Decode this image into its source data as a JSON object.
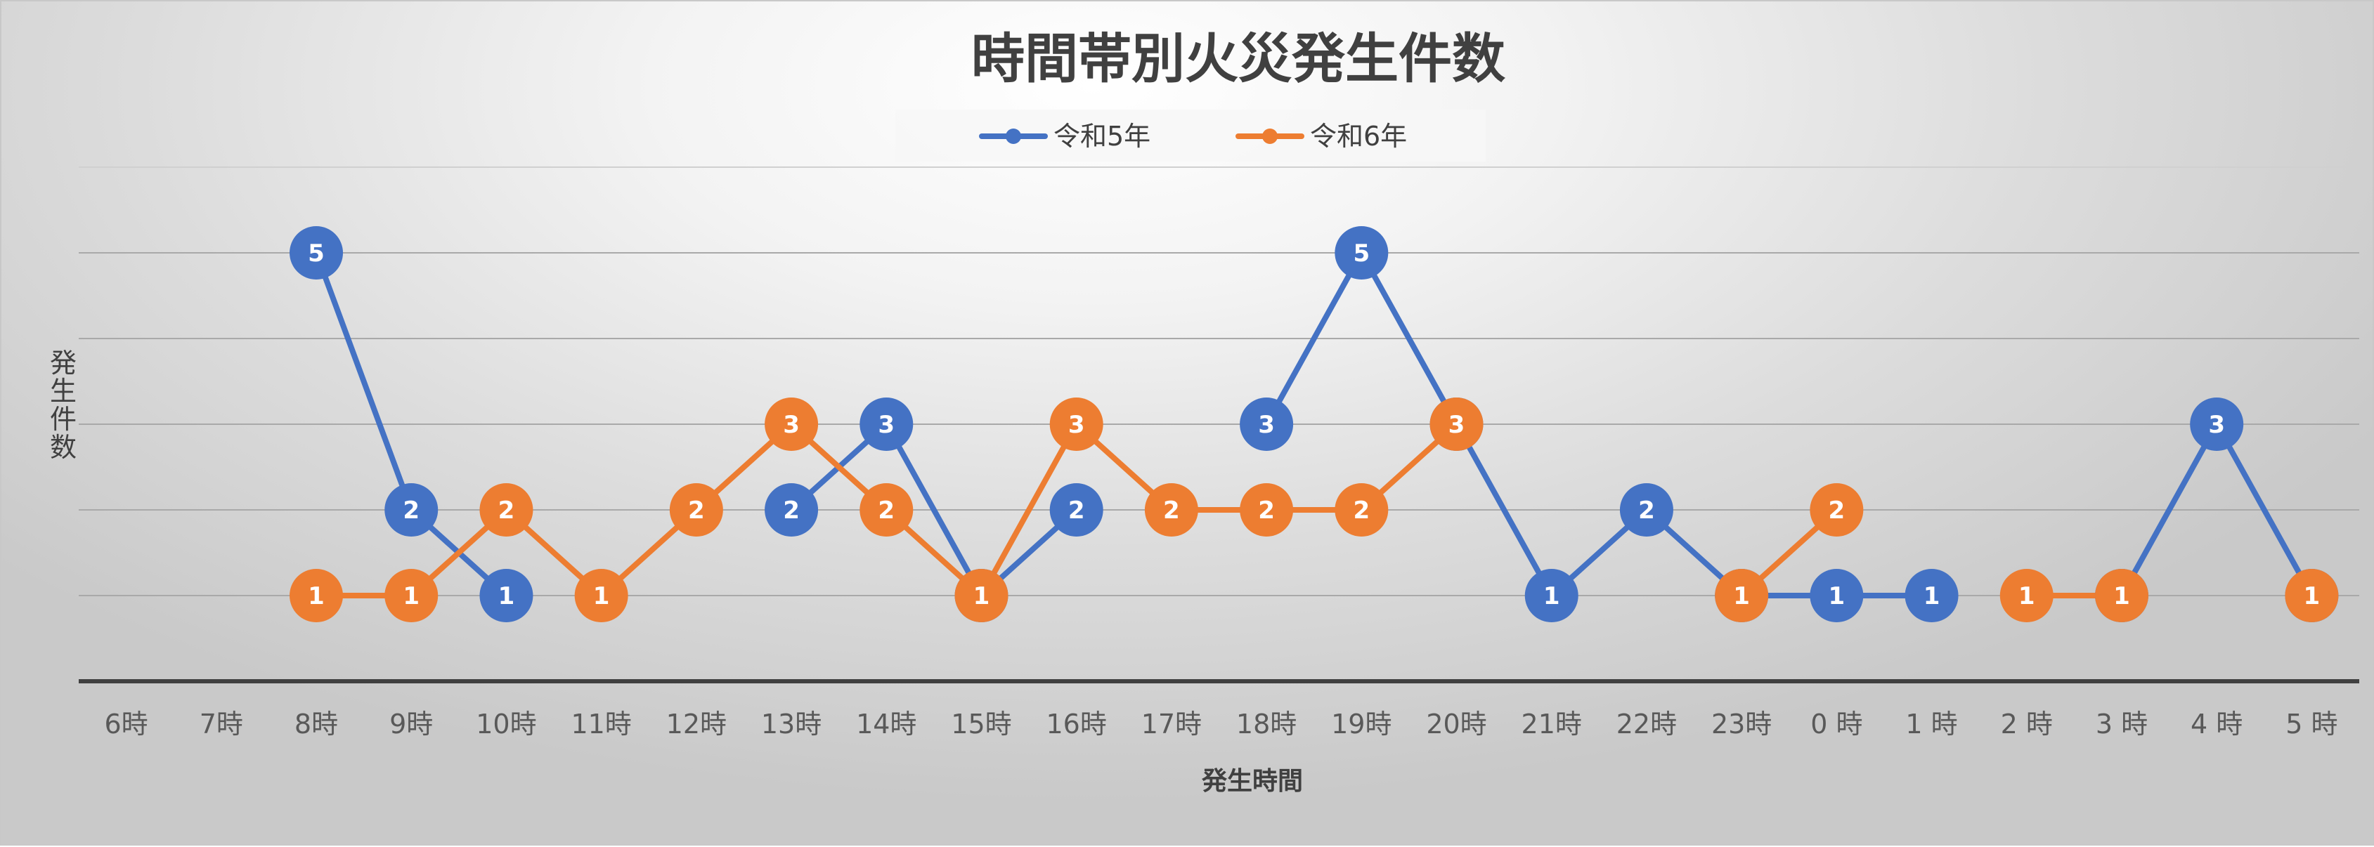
{
  "chart_data": {
    "type": "line",
    "title": "時間帯別火災発生件数",
    "xlabel": "発生時間",
    "ylabel": "発生件数",
    "categories": [
      "6時",
      "7時",
      "8時",
      "9時",
      "10時",
      "11時",
      "12時",
      "13時",
      "14時",
      "15時",
      "16時",
      "17時",
      "18時",
      "19時",
      "20時",
      "21時",
      "22時",
      "23時",
      "0 時",
      "1 時",
      "2 時",
      "3 時",
      "4 時",
      "5 時"
    ],
    "ylim": [
      0,
      6
    ],
    "grid": true,
    "legend": "top",
    "series": [
      {
        "name": "令和5年",
        "color": "#4472C4",
        "values": [
          null,
          null,
          5,
          2,
          1,
          null,
          null,
          2,
          3,
          1,
          2,
          null,
          3,
          5,
          3,
          1,
          2,
          1,
          1,
          1,
          null,
          1,
          3,
          1
        ]
      },
      {
        "name": "令和6年",
        "color": "#ED7D31",
        "values": [
          null,
          null,
          1,
          1,
          2,
          1,
          2,
          3,
          2,
          1,
          3,
          2,
          2,
          2,
          3,
          null,
          null,
          1,
          2,
          null,
          1,
          1,
          null,
          1
        ]
      }
    ]
  }
}
